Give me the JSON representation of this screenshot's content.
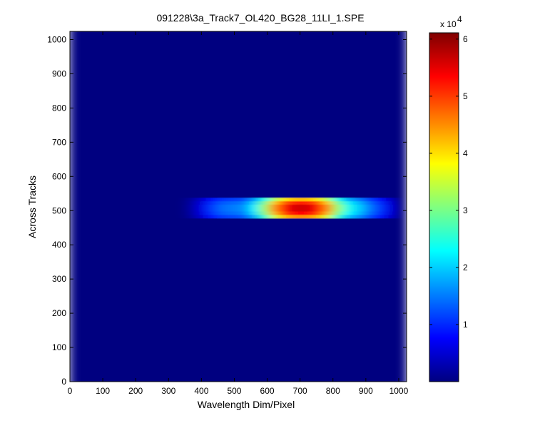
{
  "chart_data": {
    "type": "heatmap",
    "title": "091228\\3a_Track7_OL420_BG28_11LI_1.SPE",
    "x_label": "Wavelength Dim/Pixel",
    "y_label": "Across Tracks",
    "colormap": "jet",
    "xlim": [
      0,
      1024
    ],
    "ylim": [
      0,
      1024
    ],
    "xticks": [
      0,
      100,
      200,
      300,
      400,
      500,
      600,
      700,
      800,
      900,
      1000
    ],
    "yticks": [
      0,
      100,
      200,
      300,
      400,
      500,
      600,
      700,
      800,
      900,
      1000
    ],
    "clim": [
      0,
      61100
    ],
    "cticks": [
      {
        "value": 10000,
        "label": "1"
      },
      {
        "value": 20000,
        "label": "2"
      },
      {
        "value": 30000,
        "label": "3"
      },
      {
        "value": 40000,
        "label": "4"
      },
      {
        "value": 50000,
        "label": "5"
      },
      {
        "value": 60000,
        "label": "6"
      }
    ],
    "colorbar_multiplier": {
      "base": "x 10",
      "exponent": "4"
    },
    "x_bins": [
      0,
      32,
      64,
      96,
      128,
      160,
      192,
      224,
      256,
      288,
      320,
      352,
      384,
      416,
      448,
      480,
      512,
      544,
      576,
      608,
      640,
      672,
      704,
      736,
      768,
      800,
      832,
      864,
      896,
      928,
      960,
      992,
      1024
    ],
    "y_bins": [
      0,
      478,
      488,
      498,
      508,
      518,
      528,
      538,
      1024
    ],
    "z": [
      [
        0,
        0,
        0,
        0,
        0,
        0,
        0,
        0,
        0,
        0,
        0,
        0,
        0,
        0,
        0,
        0,
        0,
        0,
        0,
        0,
        0,
        0,
        0,
        0,
        0,
        0,
        0,
        0,
        0,
        0,
        0,
        0
      ],
      [
        0,
        0,
        0,
        0,
        0,
        0,
        0,
        0,
        0,
        0,
        0,
        1600,
        4800,
        8800,
        11200,
        12000,
        12800,
        17600,
        25600,
        36000,
        42400,
        44800,
        44800,
        42400,
        36000,
        25600,
        19200,
        16000,
        12000,
        8800,
        4800,
        0
      ],
      [
        0,
        0,
        0,
        0,
        0,
        0,
        0,
        0,
        0,
        0,
        0,
        1900,
        5700,
        10450,
        13300,
        14250,
        15200,
        20900,
        30400,
        42750,
        50350,
        53200,
        53200,
        50350,
        42750,
        30400,
        22800,
        19000,
        14250,
        10450,
        5700,
        0
      ],
      [
        0,
        0,
        0,
        0,
        0,
        0,
        0,
        0,
        0,
        0,
        0,
        2000,
        6000,
        11000,
        14000,
        15000,
        16000,
        22000,
        32000,
        45000,
        53000,
        56000,
        56000,
        53000,
        45000,
        32000,
        24000,
        20000,
        15000,
        11000,
        6000,
        0
      ],
      [
        0,
        0,
        0,
        0,
        0,
        0,
        0,
        0,
        0,
        0,
        0,
        2000,
        6000,
        11000,
        14000,
        15000,
        16000,
        22000,
        32000,
        45000,
        53000,
        56000,
        56000,
        53000,
        45000,
        32000,
        24000,
        20000,
        15000,
        11000,
        6000,
        0
      ],
      [
        0,
        0,
        0,
        0,
        0,
        0,
        0,
        0,
        0,
        0,
        0,
        1840,
        5520,
        10120,
        12880,
        13800,
        14720,
        20240,
        29440,
        41400,
        48760,
        51520,
        51520,
        48760,
        41400,
        29440,
        22080,
        18400,
        13800,
        10120,
        5520,
        0
      ],
      [
        0,
        0,
        0,
        0,
        0,
        0,
        0,
        0,
        0,
        0,
        0,
        1500,
        4500,
        8250,
        10500,
        11250,
        12000,
        16500,
        24000,
        33750,
        39750,
        42000,
        42000,
        39750,
        33750,
        24000,
        18000,
        15000,
        11250,
        8250,
        4500,
        0
      ],
      [
        0,
        0,
        0,
        0,
        0,
        0,
        0,
        0,
        0,
        0,
        0,
        0,
        0,
        0,
        0,
        0,
        0,
        0,
        0,
        0,
        0,
        0,
        0,
        0,
        0,
        0,
        0,
        0,
        0,
        0,
        0,
        0
      ]
    ]
  }
}
